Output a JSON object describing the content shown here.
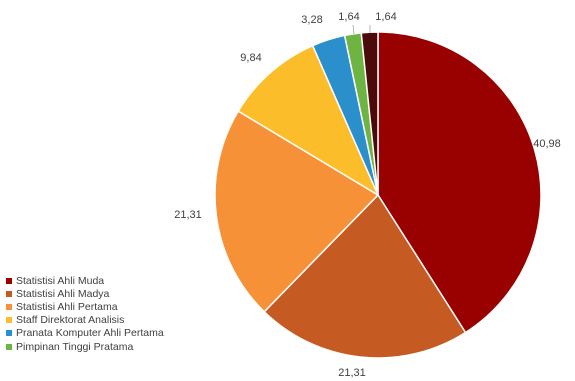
{
  "chart_data": {
    "type": "pie",
    "title": "",
    "categories": [
      "Statistisi Ahli Muda",
      "Statistisi Ahli Madya",
      "Statistisi Ahli Pertama",
      "Staff Direktorat Analisis",
      "Pranata Komputer Ahli Pertama",
      "Pimpinan Tinggi Pratama",
      ""
    ],
    "values": [
      40.98,
      21.31,
      21.31,
      9.84,
      3.28,
      1.64,
      1.64
    ],
    "value_labels": [
      "40,98",
      "21,31",
      "21,31",
      "9,84",
      "3,28",
      "1,64",
      "1,64"
    ],
    "colors": [
      "#990000",
      "#C55A22",
      "#F79138",
      "#FCBD2B",
      "#2A8FCB",
      "#6EB443",
      "#4C0A0A"
    ],
    "legend_placement": "left-bottom"
  }
}
